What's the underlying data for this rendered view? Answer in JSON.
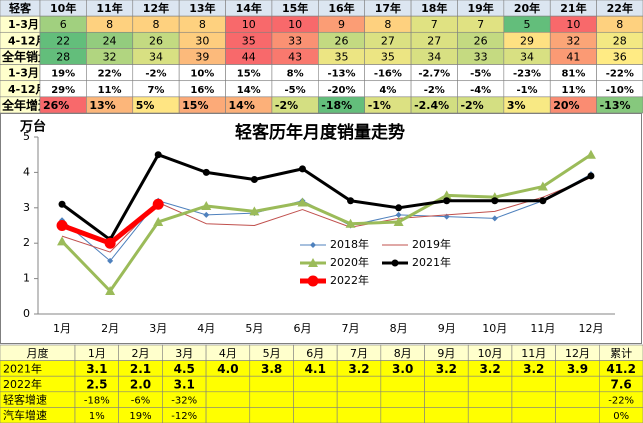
{
  "top_table": {
    "header": [
      "轻客",
      "10年",
      "11年",
      "12年",
      "13年",
      "14年",
      "15年",
      "16年",
      "17年",
      "18年",
      "19年",
      "20年",
      "21年",
      "22年"
    ],
    "rows": [
      {
        "label": "1-3月",
        "values": [
          "6",
          "8",
          "8",
          "8",
          "10",
          "10",
          "9",
          "8",
          "7",
          "7",
          "5",
          "10",
          "8"
        ]
      },
      {
        "label": "4-12月",
        "values": [
          "22",
          "24",
          "26",
          "30",
          "35",
          "33",
          "26",
          "27",
          "27",
          "26",
          "29",
          "32",
          "28"
        ]
      },
      {
        "label": "全年销量",
        "values": [
          "28",
          "32",
          "34",
          "39",
          "44",
          "43",
          "35",
          "35",
          "34",
          "33",
          "34",
          "41",
          "36"
        ]
      },
      {
        "label": "1-3月",
        "values": [
          "19%",
          "22%",
          "-2%",
          "10%",
          "15%",
          "8%",
          "-13%",
          "-16%",
          "-2.7%",
          "-5%",
          "-23%",
          "81%",
          "-22%"
        ]
      },
      {
        "label": "4-12月",
        "values": [
          "29%",
          "11%",
          "7%",
          "16%",
          "14%",
          "-5%",
          "-20%",
          "4%",
          "-2%",
          "-4%",
          "-1%",
          "11%",
          "-10%"
        ]
      },
      {
        "label": "全年增速",
        "values": [
          "26%",
          "13%",
          "5%",
          "15%",
          "14%",
          "-2%",
          "-18%",
          "-1%",
          "-2.4%",
          "-2%",
          "3%",
          "20%",
          "-13%"
        ]
      }
    ]
  },
  "chart_data": {
    "type": "line",
    "title": "轻客历年月度销量走势",
    "y_label": "万台",
    "categories": [
      "1月",
      "2月",
      "3月",
      "4月",
      "5月",
      "6月",
      "7月",
      "8月",
      "9月",
      "10月",
      "11月",
      "12月"
    ],
    "ylim": [
      0,
      5
    ],
    "yticks": [
      0,
      1,
      2,
      3,
      4,
      5
    ],
    "series": [
      {
        "name": "2018年",
        "color": "#4f81bd",
        "values": [
          2.65,
          1.5,
          3.2,
          2.8,
          2.85,
          3.2,
          2.5,
          2.8,
          2.75,
          2.7,
          3.2,
          3.95
        ]
      },
      {
        "name": "2019年",
        "color": "#c0504d",
        "values": [
          2.2,
          1.75,
          3.15,
          2.55,
          2.5,
          2.95,
          2.45,
          2.7,
          2.8,
          2.9,
          3.3,
          3.85
        ]
      },
      {
        "name": "2020年",
        "color": "#9bbb59",
        "values": [
          2.05,
          0.65,
          2.6,
          3.05,
          2.9,
          3.15,
          2.55,
          2.6,
          3.35,
          3.3,
          3.6,
          4.5
        ]
      },
      {
        "name": "2021年",
        "color": "#000000",
        "values": [
          3.1,
          2.1,
          4.5,
          4.0,
          3.8,
          4.1,
          3.2,
          3.0,
          3.2,
          3.2,
          3.2,
          3.9
        ]
      },
      {
        "name": "2022年",
        "color": "#ff0000",
        "values": [
          2.5,
          2.0,
          3.1,
          null,
          null,
          null,
          null,
          null,
          null,
          null,
          null,
          null
        ]
      }
    ]
  },
  "bottom_table": {
    "header": [
      "月度",
      "1月",
      "2月",
      "3月",
      "4月",
      "5月",
      "6月",
      "7月",
      "8月",
      "9月",
      "10月",
      "11月",
      "12月",
      "累计"
    ],
    "rows": [
      {
        "label": "2021年",
        "values": [
          "3.1",
          "2.1",
          "4.5",
          "4.0",
          "3.8",
          "4.1",
          "3.2",
          "3.0",
          "3.2",
          "3.2",
          "3.2",
          "3.9",
          "41.2"
        ]
      },
      {
        "label": "2022年",
        "values": [
          "2.5",
          "2.0",
          "3.1",
          "",
          "",
          "",
          "",
          "",
          "",
          "",
          "",
          "",
          "7.6"
        ]
      },
      {
        "label": "轻客增速",
        "values": [
          "-18%",
          "-6%",
          "-32%",
          "",
          "",
          "",
          "",
          "",
          "",
          "",
          "",
          "",
          "-22%"
        ]
      },
      {
        "label": "汽车增速",
        "values": [
          "1%",
          "19%",
          "-12%",
          "",
          "",
          "",
          "",
          "",
          "",
          "",
          "",
          "",
          "0%"
        ]
      }
    ]
  }
}
